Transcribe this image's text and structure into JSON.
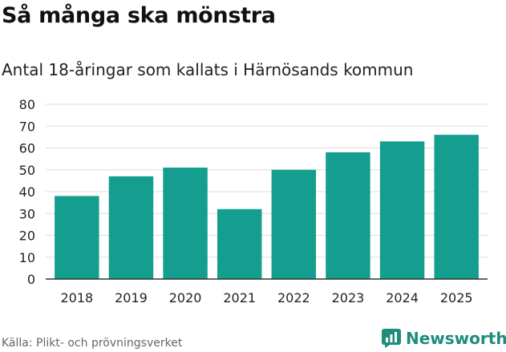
{
  "header": {
    "title": "Så många ska mönstra",
    "subtitle": "Antal 18-åringar som kallats i Härnösands kommun"
  },
  "footer": {
    "source": "Källa: Plikt- och prövningsverket",
    "brand": "Newsworthy",
    "brand_icon": "newsworthy-logo-icon",
    "brand_color": "#1f8c7e"
  },
  "chart_data": {
    "type": "bar",
    "title": "Så många ska mönstra",
    "subtitle": "Antal 18-åringar som kallats i Härnösands kommun",
    "categories": [
      "2018",
      "2019",
      "2020",
      "2021",
      "2022",
      "2023",
      "2024",
      "2025"
    ],
    "values": [
      38,
      47,
      51,
      32,
      50,
      58,
      63,
      66
    ],
    "ylim": [
      0,
      80
    ],
    "yticks": [
      0,
      10,
      20,
      30,
      40,
      50,
      60,
      70,
      80
    ],
    "grid": true,
    "bar_color": "#139e8f",
    "legend": "none"
  }
}
